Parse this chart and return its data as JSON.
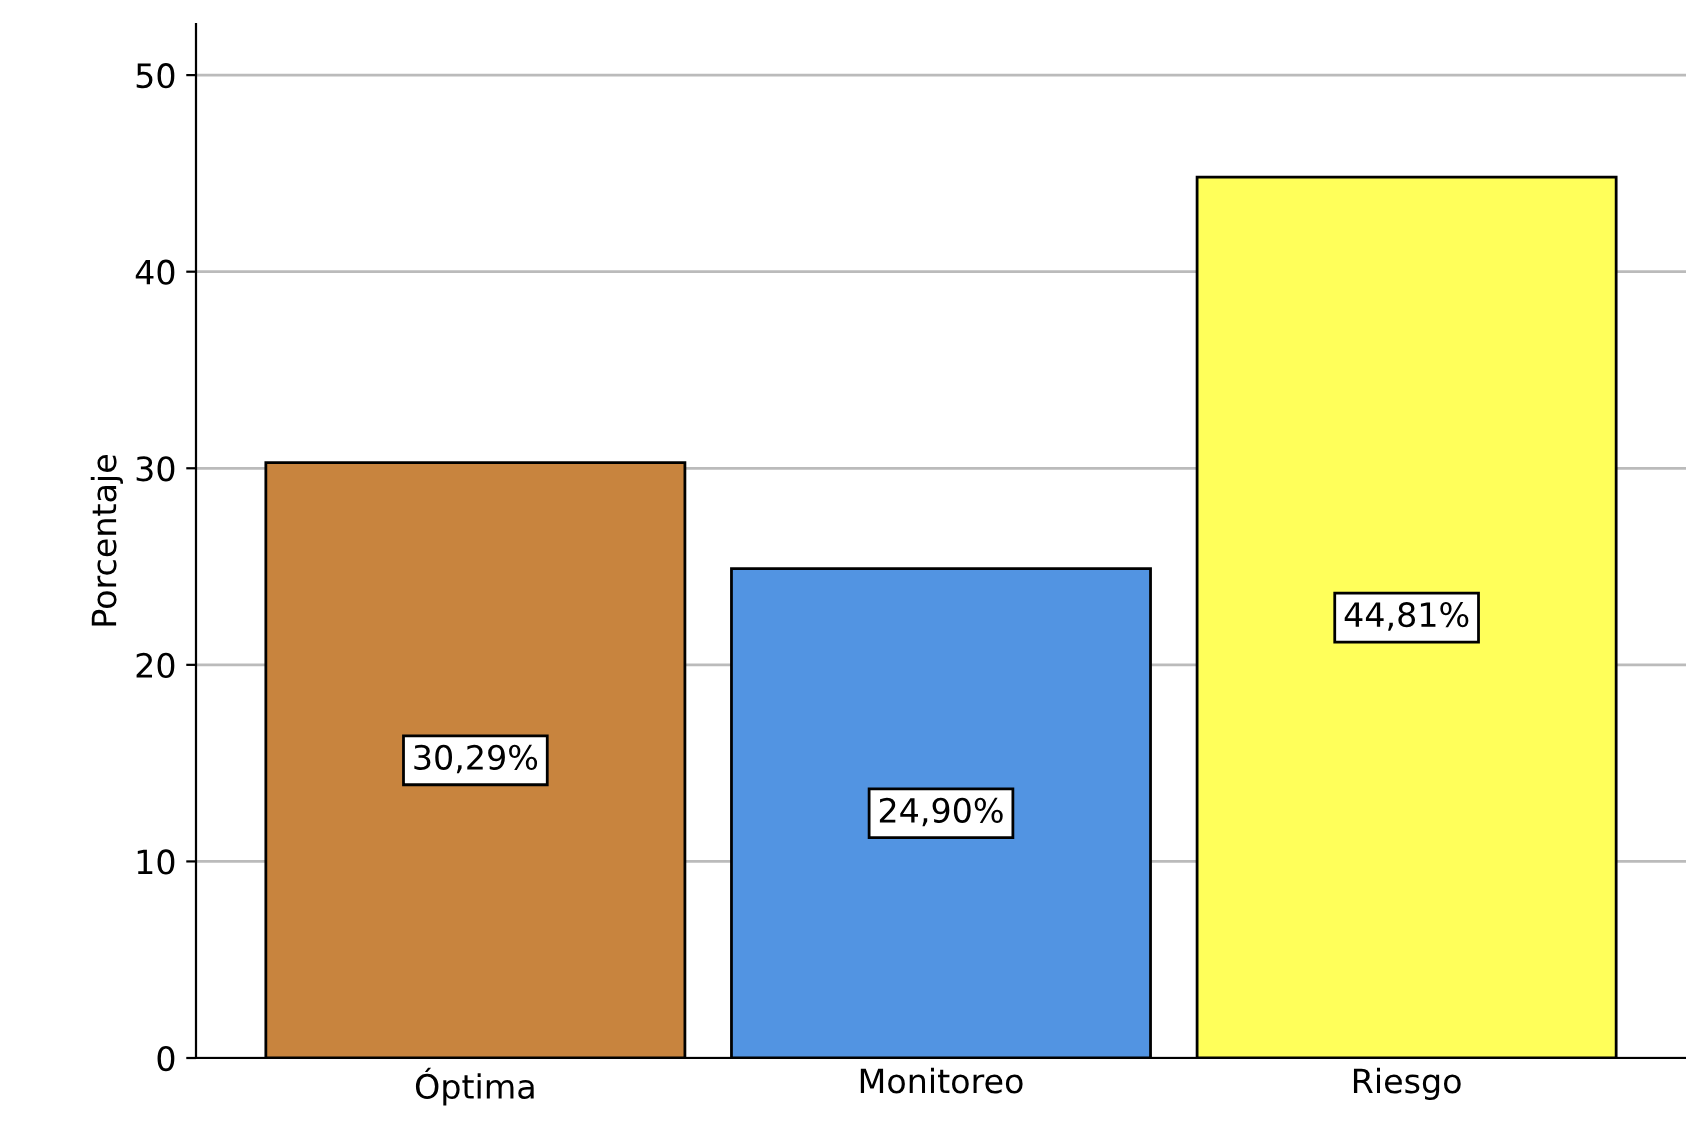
{
  "chart_data": {
    "type": "bar",
    "ylabel": "Porcentaje",
    "categories": [
      "Óptima",
      "Monitoreo",
      "Riesgo"
    ],
    "values": [
      30.29,
      24.9,
      44.81
    ],
    "colors": [
      "#c8843e",
      "#5294e2",
      "#ffff5a"
    ],
    "value_labels": [
      "30,29%",
      "24,90%",
      "44,81%"
    ],
    "ylim": [
      0,
      52.6
    ],
    "yticks": [
      0,
      10,
      20,
      30,
      40,
      50
    ],
    "grid": "y"
  }
}
